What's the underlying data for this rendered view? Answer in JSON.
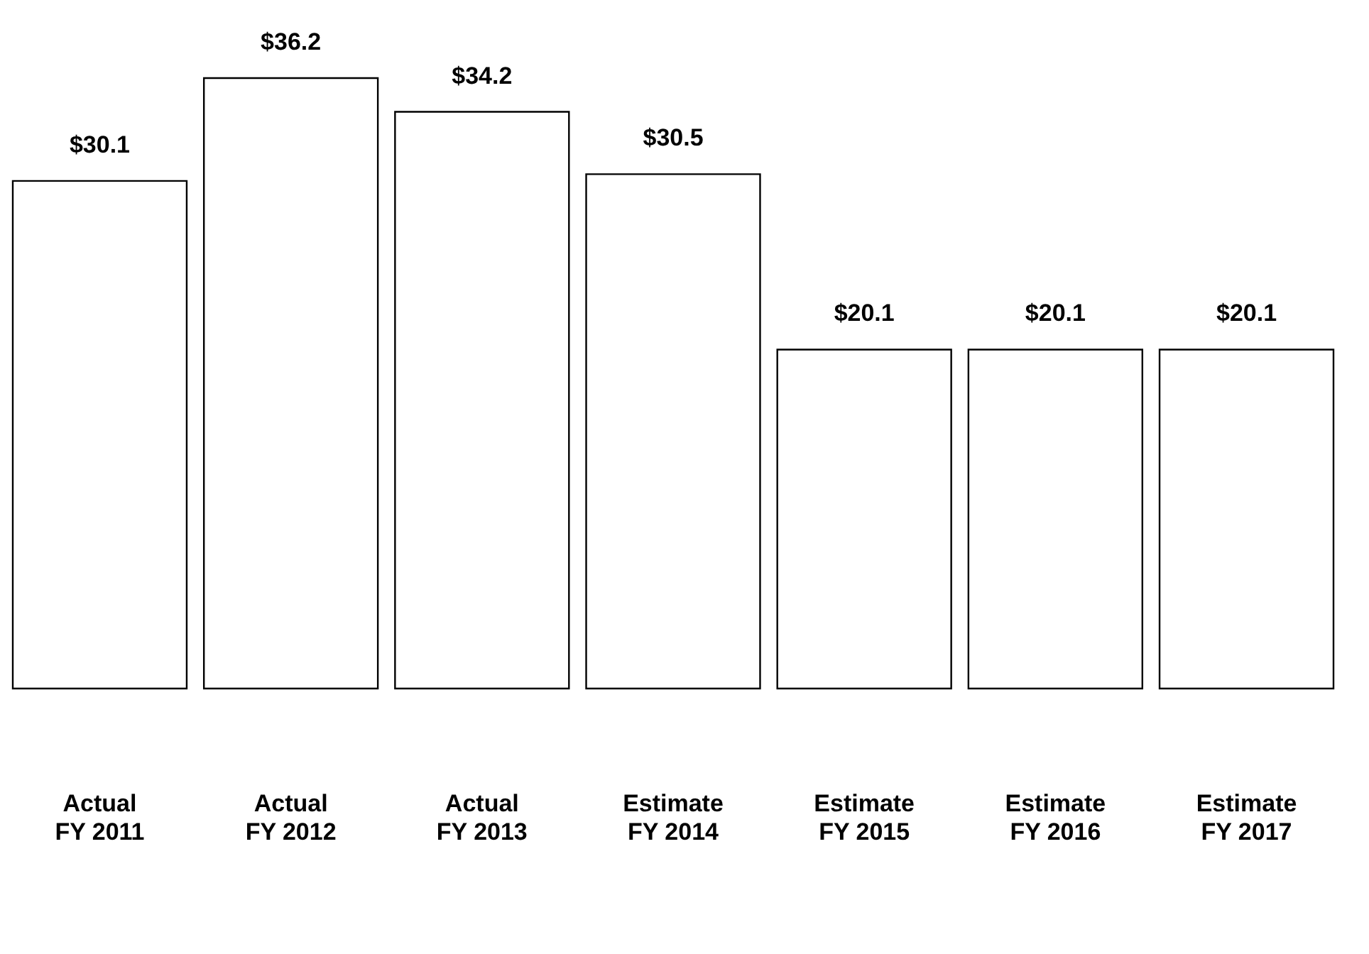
{
  "chart_data": {
    "type": "bar",
    "categories": [
      "Actual\nFY 2011",
      "Actual\nFY 2012",
      "Actual\nFY 2013",
      "Estimate\nFY 2014",
      "Estimate\nFY 2015",
      "Estimate\nFY 2016",
      "Estimate\nFY 2017"
    ],
    "values": [
      30.1,
      36.2,
      34.2,
      30.5,
      20.1,
      20.1,
      20.1
    ],
    "value_labels": [
      "$30.1",
      "$36.2",
      "$34.2",
      "$30.5",
      "$20.1",
      "$20.1",
      "$20.1"
    ],
    "color": "#ffffff",
    "grid": false
  }
}
